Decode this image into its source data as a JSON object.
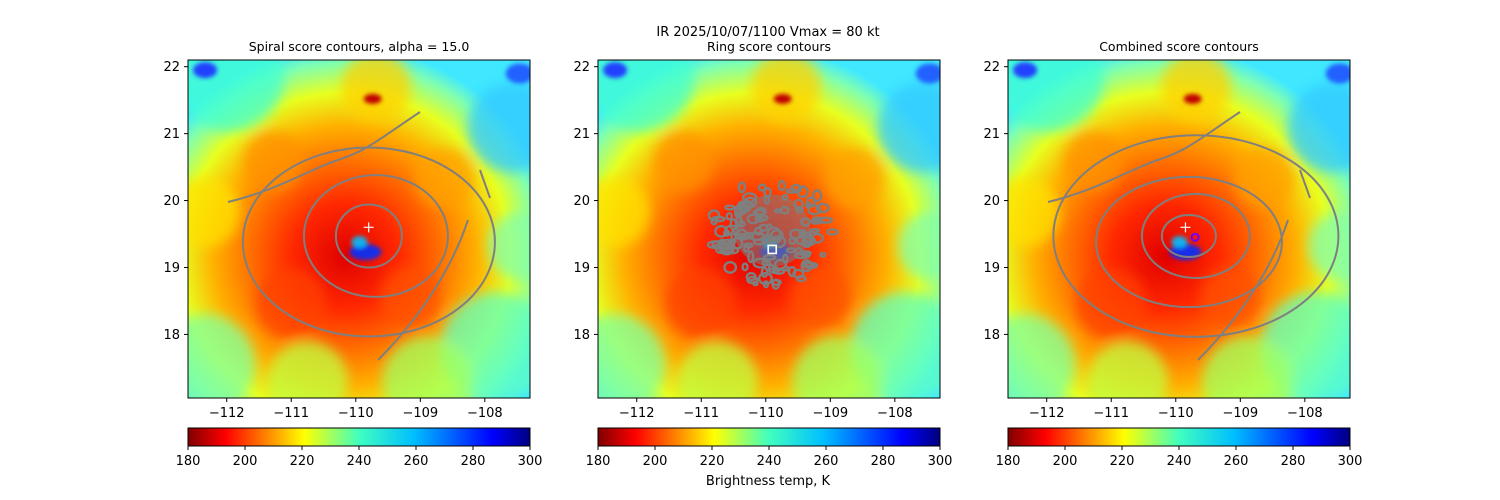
{
  "figure": {
    "suptitle_line1": "IR  2025/10/07/1100    Vmax = 80 kt",
    "colorbar_label": "Brightness temp, K"
  },
  "chart_data": [
    {
      "type": "heatmap",
      "title": "Spiral score contours, alpha = 15.0",
      "contour_style": "spiral",
      "xlim": [
        -112.6,
        -107.3
      ],
      "ylim": [
        17.05,
        22.1
      ],
      "xticks": [
        -112,
        -111,
        -110,
        -109,
        -108
      ],
      "yticks": [
        18,
        19,
        20,
        21,
        22
      ],
      "xtick_labels": [
        "−112",
        "−111",
        "−110",
        "−109",
        "−108"
      ],
      "ytick_labels": [
        "18",
        "19",
        "20",
        "21",
        "22"
      ],
      "markers": [
        {
          "symbol": "plus",
          "lon": -109.8,
          "lat": 19.6,
          "color": "#ffffff"
        }
      ],
      "colorbar": {
        "range": [
          180,
          300
        ],
        "ticks": [
          180,
          200,
          220,
          240,
          260,
          280,
          300
        ],
        "cmap": "jet_r"
      }
    },
    {
      "type": "heatmap",
      "title": "Ring score contours",
      "contour_style": "ring",
      "xlim": [
        -112.6,
        -107.3
      ],
      "ylim": [
        17.05,
        22.1
      ],
      "xticks": [
        -112,
        -111,
        -110,
        -109,
        -108
      ],
      "yticks": [
        18,
        19,
        20,
        21,
        22
      ],
      "xtick_labels": [
        "−112",
        "−111",
        "−110",
        "−109",
        "−108"
      ],
      "ytick_labels": [
        "18",
        "19",
        "20",
        "21",
        "22"
      ],
      "markers": [
        {
          "symbol": "square",
          "lon": -109.9,
          "lat": 19.27,
          "color": "#ffffff"
        }
      ],
      "colorbar": {
        "range": [
          180,
          300
        ],
        "ticks": [
          180,
          200,
          220,
          240,
          260,
          280,
          300
        ],
        "cmap": "jet_r"
      }
    },
    {
      "type": "heatmap",
      "title": "Combined score contours",
      "contour_style": "combined",
      "xlim": [
        -112.6,
        -107.3
      ],
      "ylim": [
        17.05,
        22.1
      ],
      "xticks": [
        -112,
        -111,
        -110,
        -109,
        -108
      ],
      "yticks": [
        18,
        19,
        20,
        21,
        22
      ],
      "xtick_labels": [
        "−112",
        "−111",
        "−110",
        "−109",
        "−108"
      ],
      "ytick_labels": [
        "18",
        "19",
        "20",
        "21",
        "22"
      ],
      "markers": [
        {
          "symbol": "plus",
          "lon": -109.85,
          "lat": 19.6,
          "color": "#ffffff"
        },
        {
          "symbol": "circle",
          "lon": -109.7,
          "lat": 19.45,
          "color": "#6a00ff"
        }
      ],
      "colorbar": {
        "range": [
          180,
          300
        ],
        "ticks": [
          180,
          200,
          220,
          240,
          260,
          280,
          300
        ],
        "cmap": "jet_r"
      }
    }
  ]
}
